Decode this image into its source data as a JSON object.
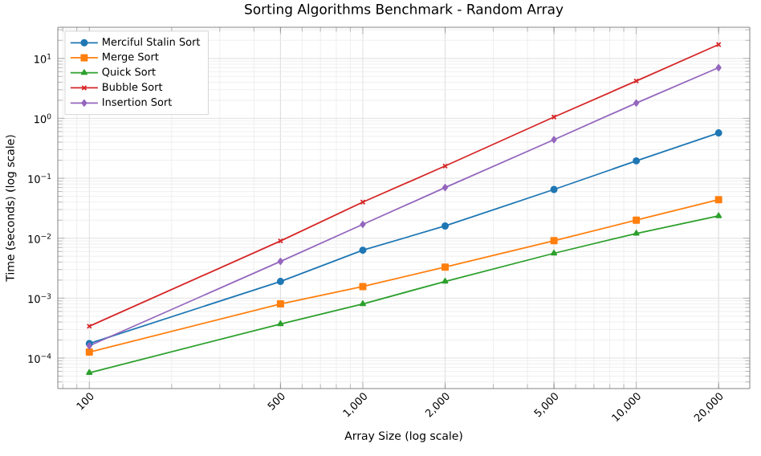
{
  "chart_data": {
    "type": "line",
    "title": "Sorting Algorithms Benchmark - Random Array",
    "xlabel": "Array Size (log scale)",
    "ylabel": "Time (seconds) (log scale)",
    "x": [
      100,
      500,
      1000,
      2000,
      5000,
      10000,
      20000
    ],
    "series": [
      {
        "name": "Merciful Stalin Sort",
        "color": "#1f77b4",
        "marker": "circle",
        "values": [
          0.000175,
          0.0019,
          0.0063,
          0.016,
          0.065,
          0.195,
          0.57
        ]
      },
      {
        "name": "Merge Sort",
        "color": "#ff7f0e",
        "marker": "square",
        "values": [
          0.000126,
          0.0008,
          0.00156,
          0.0033,
          0.0091,
          0.02,
          0.044
        ]
      },
      {
        "name": "Quick Sort",
        "color": "#2ca02c",
        "marker": "triangle",
        "values": [
          5.7e-05,
          0.00037,
          0.0008,
          0.0019,
          0.0056,
          0.012,
          0.0235
        ]
      },
      {
        "name": "Bubble Sort",
        "color": "#d62728",
        "marker": "cross",
        "values": [
          0.00034,
          0.009,
          0.04,
          0.16,
          1.05,
          4.2,
          17
        ]
      },
      {
        "name": "Insertion Sort",
        "color": "#9467bd",
        "marker": "diamond",
        "values": [
          0.00016,
          0.0041,
          0.017,
          0.07,
          0.44,
          1.8,
          7
        ]
      }
    ],
    "log": "xy",
    "xlim": [
      76.7,
      26000
    ],
    "ylim": [
      3.1e-05,
      33
    ],
    "xticks": [
      100,
      500,
      {
        "value": 1000,
        "label": "1,000"
      },
      {
        "value": 2000,
        "label": "2,000"
      },
      {
        "value": 5000,
        "label": "5,000"
      },
      {
        "value": 10000,
        "label": "10,000"
      },
      {
        "value": 20000,
        "label": "20,000"
      }
    ],
    "yticks": [
      {
        "value": 0.0001,
        "label": "10$^{−4}$"
      },
      {
        "value": 0.001,
        "label": "10$^{−3}$"
      },
      {
        "value": 0.01,
        "label": "10$^{−2}$"
      },
      {
        "value": 0.1,
        "label": "10$^{−1}$"
      },
      {
        "value": 1,
        "label": "10$^{0}$"
      },
      {
        "value": 10,
        "label": "10$^{1}$"
      }
    ],
    "grid": true,
    "legend": "top left",
    "line_style": "solid"
  }
}
